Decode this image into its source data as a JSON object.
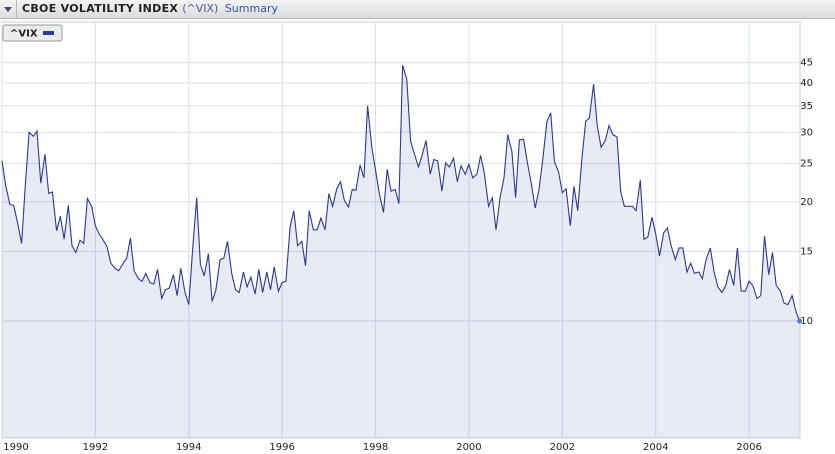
{
  "chart_data": {
    "type": "line",
    "title": "CBOE VOLATILITY INDEX",
    "symbol": "(^VIX)",
    "link": "Summary",
    "log_scale": true,
    "grid": true,
    "legend": "top-left",
    "fill_area": true,
    "x": [
      1990,
      1990.08,
      1990.17,
      1990.25,
      1990.33,
      1990.42,
      1990.5,
      1990.58,
      1990.67,
      1990.75,
      1990.83,
      1990.92,
      1991,
      1991.08,
      1991.17,
      1991.25,
      1991.33,
      1991.42,
      1991.5,
      1991.58,
      1991.67,
      1991.75,
      1991.83,
      1991.92,
      1992,
      1992.08,
      1992.17,
      1992.25,
      1992.33,
      1992.42,
      1992.5,
      1992.58,
      1992.67,
      1992.75,
      1992.83,
      1992.92,
      1993,
      1993.08,
      1993.17,
      1993.25,
      1993.33,
      1993.42,
      1993.5,
      1993.58,
      1993.67,
      1993.75,
      1993.83,
      1993.92,
      1994,
      1994.08,
      1994.17,
      1994.25,
      1994.33,
      1994.42,
      1994.5,
      1994.58,
      1994.67,
      1994.75,
      1994.83,
      1994.92,
      1995,
      1995.08,
      1995.17,
      1995.25,
      1995.33,
      1995.42,
      1995.5,
      1995.58,
      1995.67,
      1995.75,
      1995.83,
      1995.92,
      1996,
      1996.08,
      1996.17,
      1996.25,
      1996.33,
      1996.42,
      1996.5,
      1996.58,
      1996.67,
      1996.75,
      1996.83,
      1996.92,
      1997,
      1997.08,
      1997.17,
      1997.25,
      1997.33,
      1997.42,
      1997.5,
      1997.58,
      1997.67,
      1997.75,
      1997.83,
      1997.92,
      1998,
      1998.08,
      1998.17,
      1998.25,
      1998.33,
      1998.42,
      1998.5,
      1998.58,
      1998.67,
      1998.75,
      1998.83,
      1998.92,
      1999,
      1999.08,
      1999.17,
      1999.25,
      1999.33,
      1999.42,
      1999.5,
      1999.58,
      1999.67,
      1999.75,
      1999.83,
      1999.92,
      2000,
      2000.08,
      2000.17,
      2000.25,
      2000.33,
      2000.42,
      2000.5,
      2000.58,
      2000.67,
      2000.75,
      2000.83,
      2000.92,
      2001,
      2001.08,
      2001.17,
      2001.25,
      2001.33,
      2001.42,
      2001.5,
      2001.58,
      2001.67,
      2001.75,
      2001.83,
      2001.92,
      2002,
      2002.08,
      2002.17,
      2002.25,
      2002.33,
      2002.42,
      2002.5,
      2002.58,
      2002.67,
      2002.75,
      2002.83,
      2002.92,
      2003,
      2003.08,
      2003.17,
      2003.25,
      2003.33,
      2003.42,
      2003.5,
      2003.58,
      2003.67,
      2003.75,
      2003.83,
      2003.92,
      2004,
      2004.08,
      2004.17,
      2004.25,
      2004.33,
      2004.42,
      2004.5,
      2004.58,
      2004.67,
      2004.75,
      2004.83,
      2004.92,
      2005,
      2005.08,
      2005.17,
      2005.25,
      2005.33,
      2005.42,
      2005.5,
      2005.58,
      2005.67,
      2005.75,
      2005.83,
      2005.92,
      2006,
      2006.08,
      2006.17,
      2006.25,
      2006.33,
      2006.42,
      2006.5,
      2006.58,
      2006.67,
      2006.75,
      2006.83,
      2006.92,
      2007,
      2007.08
    ],
    "series": [
      {
        "name": "^VIX",
        "color": "#2b3990",
        "values": [
          25.4,
          22,
          19.7,
          19.6,
          17.8,
          15.7,
          22,
          30,
          29.3,
          30.2,
          22.3,
          26.4,
          21,
          21.2,
          16.9,
          18.4,
          16.1,
          19.6,
          15.5,
          14.9,
          16,
          15.7,
          20.4,
          19.5,
          17.4,
          16.6,
          16,
          15.4,
          14,
          13.6,
          13.4,
          13.9,
          14.4,
          16.2,
          13.4,
          12.8,
          12.6,
          13.2,
          12.5,
          12.4,
          13.5,
          11.4,
          12,
          12.1,
          13.1,
          11.6,
          13.6,
          11.8,
          11,
          15,
          20.5,
          13.9,
          13,
          14.8,
          11.2,
          12,
          14.3,
          14.4,
          15.9,
          13.2,
          12,
          11.8,
          13.3,
          12.2,
          12.9,
          11.7,
          13.5,
          11.8,
          13.3,
          12,
          13.7,
          11.9,
          12.5,
          12.6,
          17.3,
          19,
          15.5,
          15.9,
          13.8,
          19,
          17,
          17,
          18.2,
          17,
          21,
          19.5,
          21.6,
          22.5,
          20.2,
          19.4,
          21.5,
          21.4,
          24.8,
          23,
          35,
          27.5,
          24,
          21,
          18.8,
          24.2,
          21.3,
          21.5,
          19.8,
          44.3,
          40.8,
          28.5,
          26.5,
          24.5,
          26.3,
          28.6,
          23.5,
          25.6,
          25.4,
          21.3,
          25.1,
          24.5,
          25.8,
          22.5,
          24.7,
          23.5,
          24.9,
          23,
          23.5,
          26.2,
          23.7,
          19.5,
          20.5,
          17,
          20.6,
          23,
          29.6,
          26.8,
          20.5,
          28.7,
          28.8,
          25.2,
          22.5,
          19.3,
          21.5,
          25.5,
          31.9,
          33.6,
          25.3,
          23.8,
          21.1,
          21.6,
          17.4,
          21.9,
          19,
          25.7,
          32,
          32.6,
          39.7,
          31.1,
          27.5,
          28.6,
          31.2,
          29.6,
          29.2,
          21.2,
          19.5,
          19.5,
          19.5,
          19,
          22.7,
          16.1,
          16.3,
          18.3,
          16.6,
          14.6,
          16.7,
          17.2,
          15.5,
          14.3,
          15.3,
          15.3,
          13.3,
          14,
          13.2,
          13.3,
          12.8,
          14.3,
          15.3,
          13.3,
          12.2,
          11.8,
          12.3,
          13.5,
          12.3,
          15.3,
          11.9,
          11.9,
          12.6,
          12.3,
          11.4,
          11.6,
          16.4,
          13.1,
          14.9,
          12.3,
          11.9,
          11.1,
          11,
          11.6,
          10.6,
          10
        ]
      }
    ],
    "xlim": [
      1990,
      2007.09
    ],
    "xticks": [
      1990,
      1992,
      1994,
      1996,
      1998,
      2000,
      2002,
      2004,
      2006
    ],
    "ylim": [
      5.06,
      57
    ],
    "yticks": [
      10,
      15,
      20,
      25,
      30,
      35,
      40,
      45
    ]
  }
}
